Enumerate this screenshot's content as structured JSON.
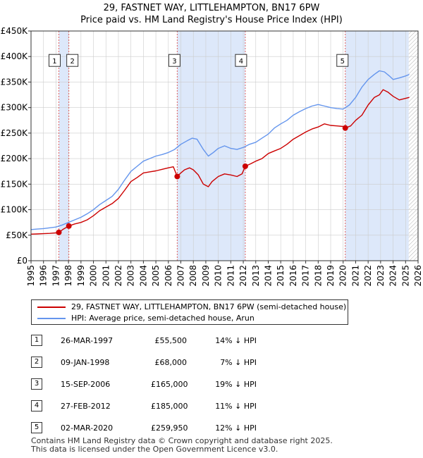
{
  "title": "29, FASTNET WAY, LITTLEHAMPTON, BN17 6PW",
  "subtitle": "Price paid vs. HM Land Registry's House Price Index (HPI)",
  "colors": {
    "property": "#cc0000",
    "hpi": "#6495ed",
    "shade": "#dde8fa",
    "grid": "#cccccc",
    "vline": "#e06060"
  },
  "chart_data": {
    "type": "line",
    "title": "29, FASTNET WAY, LITTLEHAMPTON, BN17 6PW",
    "xlim": [
      1995,
      2026
    ],
    "ylim": [
      0,
      450000
    ],
    "x_ticks": [
      "1995",
      "1996",
      "1997",
      "1998",
      "1999",
      "2000",
      "2001",
      "2002",
      "2003",
      "2004",
      "2005",
      "2006",
      "2007",
      "2008",
      "2009",
      "2010",
      "2011",
      "2012",
      "2013",
      "2014",
      "2015",
      "2016",
      "2017",
      "2018",
      "2019",
      "2020",
      "2021",
      "2022",
      "2023",
      "2024",
      "2025",
      "2026"
    ],
    "y_ticks": [
      {
        "value": 0,
        "label": "£0"
      },
      {
        "value": 50000,
        "label": "£50K"
      },
      {
        "value": 100000,
        "label": "£100K"
      },
      {
        "value": 150000,
        "label": "£150K"
      },
      {
        "value": 200000,
        "label": "£200K"
      },
      {
        "value": 250000,
        "label": "£250K"
      },
      {
        "value": 300000,
        "label": "£300K"
      },
      {
        "value": 350000,
        "label": "£350K"
      },
      {
        "value": 400000,
        "label": "£400K"
      },
      {
        "value": 450000,
        "label": "£450K"
      }
    ],
    "shaded_periods": [
      {
        "start": 1997.23,
        "end": 1998.03
      },
      {
        "start": 2006.71,
        "end": 2012.16
      },
      {
        "start": 2020.17,
        "end": 2025.25
      }
    ],
    "hatched_from": 2025.25,
    "series": [
      {
        "name": "29, FASTNET WAY, LITTLEHAMPTON, BN17 6PW (semi-detached house)",
        "color": "#cc0000",
        "x": [
          1995.0,
          1995.5,
          1996.0,
          1996.5,
          1997.0,
          1997.23,
          1997.6,
          1998.03,
          1998.5,
          1999.0,
          1999.5,
          2000.0,
          2000.5,
          2001.0,
          2001.5,
          2002.0,
          2002.5,
          2003.0,
          2003.5,
          2004.0,
          2004.5,
          2005.0,
          2005.5,
          2006.0,
          2006.4,
          2006.71,
          2007.0,
          2007.3,
          2007.7,
          2008.0,
          2008.4,
          2008.8,
          2009.2,
          2009.5,
          2010.0,
          2010.5,
          2011.0,
          2011.5,
          2011.9,
          2012.16,
          2012.6,
          2013.0,
          2013.5,
          2014.0,
          2014.5,
          2015.0,
          2015.5,
          2016.0,
          2016.5,
          2017.0,
          2017.5,
          2018.0,
          2018.5,
          2019.0,
          2019.5,
          2020.0,
          2020.17,
          2020.6,
          2021.0,
          2021.5,
          2022.0,
          2022.5,
          2022.9,
          2023.2,
          2023.6,
          2024.0,
          2024.5,
          2025.0,
          2025.3
        ],
        "values": [
          52000,
          52500,
          53000,
          53500,
          54500,
          55500,
          62000,
          68000,
          72000,
          75000,
          80000,
          88000,
          98000,
          105000,
          112000,
          122000,
          138000,
          155000,
          163000,
          172000,
          174000,
          176000,
          179000,
          182000,
          184000,
          165000,
          172000,
          178000,
          182000,
          178000,
          168000,
          150000,
          145000,
          155000,
          165000,
          170000,
          168000,
          165000,
          170000,
          185000,
          190000,
          195000,
          200000,
          210000,
          215000,
          220000,
          228000,
          238000,
          245000,
          252000,
          258000,
          262000,
          268000,
          265000,
          264000,
          263000,
          259950,
          264000,
          275000,
          285000,
          305000,
          320000,
          325000,
          335000,
          330000,
          322000,
          315000,
          318000,
          320000
        ]
      },
      {
        "name": "HPI: Average price, semi-detached house, Arun",
        "color": "#6495ed",
        "x": [
          1995.0,
          1995.5,
          1996.0,
          1996.5,
          1997.0,
          1997.5,
          1998.0,
          1998.5,
          1999.0,
          1999.5,
          2000.0,
          2000.5,
          2001.0,
          2001.5,
          2002.0,
          2002.5,
          2003.0,
          2003.5,
          2004.0,
          2004.5,
          2005.0,
          2005.5,
          2006.0,
          2006.5,
          2007.0,
          2007.5,
          2007.9,
          2008.3,
          2008.8,
          2009.2,
          2009.6,
          2010.0,
          2010.5,
          2011.0,
          2011.5,
          2012.0,
          2012.5,
          2013.0,
          2013.5,
          2014.0,
          2014.5,
          2015.0,
          2015.5,
          2016.0,
          2016.5,
          2017.0,
          2017.5,
          2018.0,
          2018.5,
          2019.0,
          2019.5,
          2020.0,
          2020.5,
          2021.0,
          2021.5,
          2022.0,
          2022.5,
          2022.9,
          2023.3,
          2023.7,
          2024.0,
          2024.5,
          2025.0,
          2025.3
        ],
        "values": [
          61000,
          62000,
          63000,
          64500,
          66000,
          70000,
          75000,
          80000,
          85000,
          92000,
          100000,
          110000,
          118000,
          126000,
          140000,
          158000,
          175000,
          185000,
          195000,
          200000,
          205000,
          208000,
          212000,
          218000,
          228000,
          235000,
          240000,
          238000,
          218000,
          205000,
          212000,
          220000,
          225000,
          220000,
          218000,
          222000,
          228000,
          232000,
          240000,
          248000,
          260000,
          268000,
          275000,
          285000,
          292000,
          298000,
          303000,
          306000,
          303000,
          300000,
          298000,
          297000,
          305000,
          320000,
          340000,
          355000,
          365000,
          372000,
          370000,
          362000,
          355000,
          358000,
          362000,
          365000
        ]
      }
    ],
    "sales": [
      {
        "num": "1",
        "label": "1",
        "date": "26-MAR-1997",
        "x": 1997.23,
        "price": 55500,
        "price_label": "£55,500",
        "hpi": "14% ↓ HPI"
      },
      {
        "num": "2",
        "label": "2",
        "date": "09-JAN-1998",
        "x": 1998.03,
        "price": 68000,
        "price_label": "£68,000",
        "hpi": "7% ↓ HPI"
      },
      {
        "num": "3",
        "label": "3",
        "date": "15-SEP-2006",
        "x": 2006.71,
        "price": 165000,
        "price_label": "£165,000",
        "hpi": "19% ↓ HPI"
      },
      {
        "num": "4",
        "label": "4",
        "date": "27-FEB-2012",
        "x": 2012.16,
        "price": 185000,
        "price_label": "£185,000",
        "hpi": "11% ↓ HPI"
      },
      {
        "num": "5",
        "label": "5",
        "date": "02-MAR-2020",
        "x": 2020.17,
        "price": 259950,
        "price_label": "£259,950",
        "hpi": "12% ↓ HPI"
      }
    ],
    "marker_label_value": 400000
  },
  "legend": {
    "property_label": "29, FASTNET WAY, LITTLEHAMPTON, BN17 6PW (semi-detached house)",
    "hpi_label": "HPI: Average price, semi-detached house, Arun"
  },
  "footer": {
    "line1": "Contains HM Land Registry data © Crown copyright and database right 2025.",
    "line2": "This data is licensed under the Open Government Licence v3.0."
  }
}
